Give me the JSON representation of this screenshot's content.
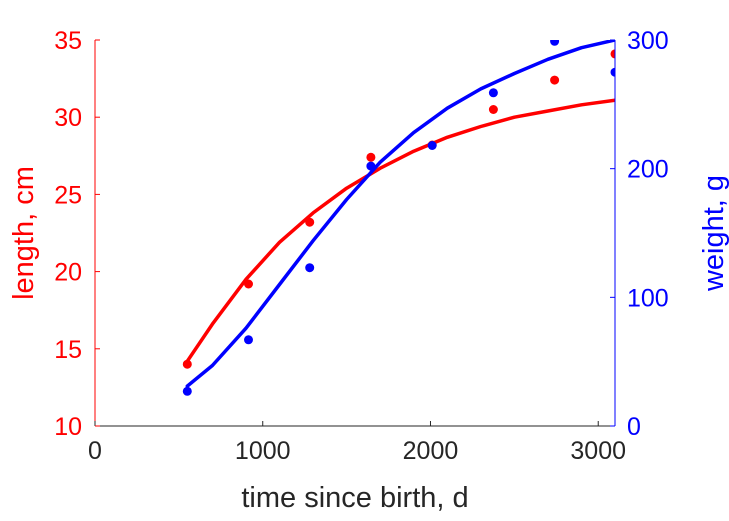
{
  "chart_data": {
    "type": "scatter",
    "xlabel": "time since birth, d",
    "ylabel_left": "length, cm",
    "ylabel_right": "weight, g",
    "xlim": [
      0,
      3100
    ],
    "ylim_left": [
      10,
      35
    ],
    "ylim_right": [
      0,
      300
    ],
    "x_ticks": [
      0,
      1000,
      2000,
      3000
    ],
    "y_ticks_left": [
      10,
      15,
      20,
      25,
      30,
      35
    ],
    "y_ticks_right": [
      0,
      100,
      200,
      300
    ],
    "grid": false,
    "colors": {
      "left": "#ff0000",
      "right": "#0000ff",
      "axis": "#262626"
    },
    "series": [
      {
        "axis": "left",
        "color": "#ff0000",
        "points": [
          [
            550,
            14.0
          ],
          [
            915,
            19.2
          ],
          [
            1280,
            23.2
          ],
          [
            1645,
            27.4
          ],
          [
            2010,
            28.2
          ],
          [
            2375,
            30.5
          ],
          [
            2740,
            32.4
          ],
          [
            3100,
            34.1
          ]
        ],
        "fit": [
          [
            550,
            14.2
          ],
          [
            700,
            16.6
          ],
          [
            900,
            19.5
          ],
          [
            1100,
            21.9
          ],
          [
            1300,
            23.8
          ],
          [
            1500,
            25.4
          ],
          [
            1700,
            26.7
          ],
          [
            1900,
            27.8
          ],
          [
            2100,
            28.7
          ],
          [
            2300,
            29.4
          ],
          [
            2500,
            30.0
          ],
          [
            2700,
            30.4
          ],
          [
            2900,
            30.8
          ],
          [
            3100,
            31.1
          ]
        ]
      },
      {
        "axis": "right",
        "color": "#0000ff",
        "points": [
          [
            550,
            27
          ],
          [
            915,
            67
          ],
          [
            1280,
            123
          ],
          [
            1645,
            202
          ],
          [
            2010,
            218
          ],
          [
            2375,
            259
          ],
          [
            2740,
            299
          ],
          [
            3100,
            275
          ]
        ],
        "fit": [
          [
            550,
            31
          ],
          [
            700,
            47
          ],
          [
            900,
            76
          ],
          [
            1100,
            110
          ],
          [
            1300,
            144
          ],
          [
            1500,
            176
          ],
          [
            1700,
            205
          ],
          [
            1900,
            228
          ],
          [
            2100,
            247
          ],
          [
            2300,
            262
          ],
          [
            2500,
            274
          ],
          [
            2700,
            285
          ],
          [
            2900,
            294
          ],
          [
            3100,
            300
          ]
        ]
      }
    ]
  }
}
